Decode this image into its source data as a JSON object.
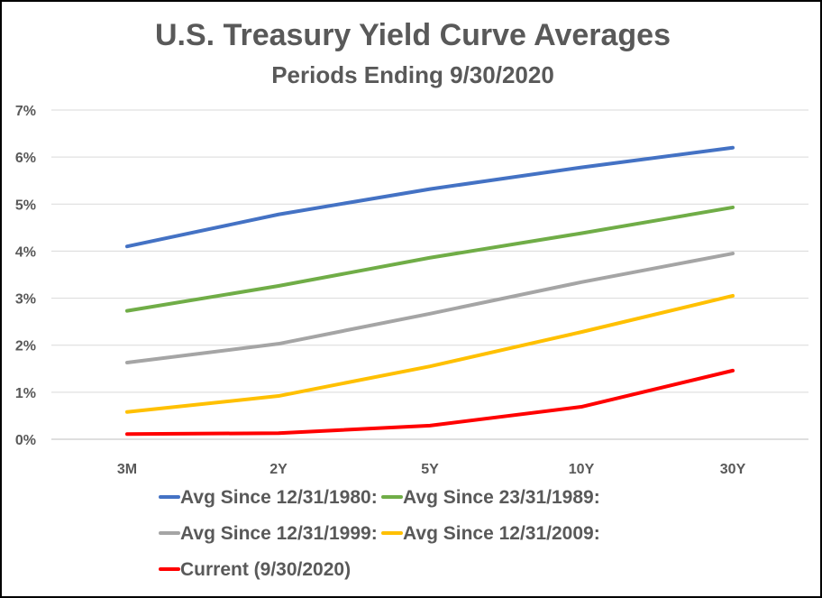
{
  "chart_data": {
    "type": "line",
    "title": "U.S. Treasury Yield Curve Averages",
    "subtitle": "Periods Ending 9/30/2020",
    "xlabel": "",
    "ylabel": "",
    "categories": [
      "3M",
      "2Y",
      "5Y",
      "10Y",
      "30Y"
    ],
    "ylim": [
      0,
      7
    ],
    "yticks": [
      "0%",
      "1%",
      "2%",
      "3%",
      "4%",
      "5%",
      "6%",
      "7%"
    ],
    "grid": true,
    "legend_position": "bottom",
    "series": [
      {
        "name": "Avg Since 12/31/1980:",
        "color": "#4472C4",
        "values": [
          4.1,
          4.78,
          5.32,
          5.78,
          6.2
        ]
      },
      {
        "name": "Avg Since 23/31/1989:",
        "color": "#70AD47",
        "values": [
          2.73,
          3.26,
          3.86,
          4.38,
          4.93
        ]
      },
      {
        "name": "Avg Since 12/31/1999:",
        "color": "#A5A5A5",
        "values": [
          1.63,
          2.03,
          2.67,
          3.34,
          3.95
        ]
      },
      {
        "name": "Avg Since 12/31/2009:",
        "color": "#FFC000",
        "values": [
          0.58,
          0.92,
          1.55,
          2.28,
          3.05
        ]
      },
      {
        "name": "Current (9/30/2020)",
        "color": "#FF0000",
        "values": [
          0.11,
          0.13,
          0.29,
          0.69,
          1.46
        ]
      }
    ]
  }
}
